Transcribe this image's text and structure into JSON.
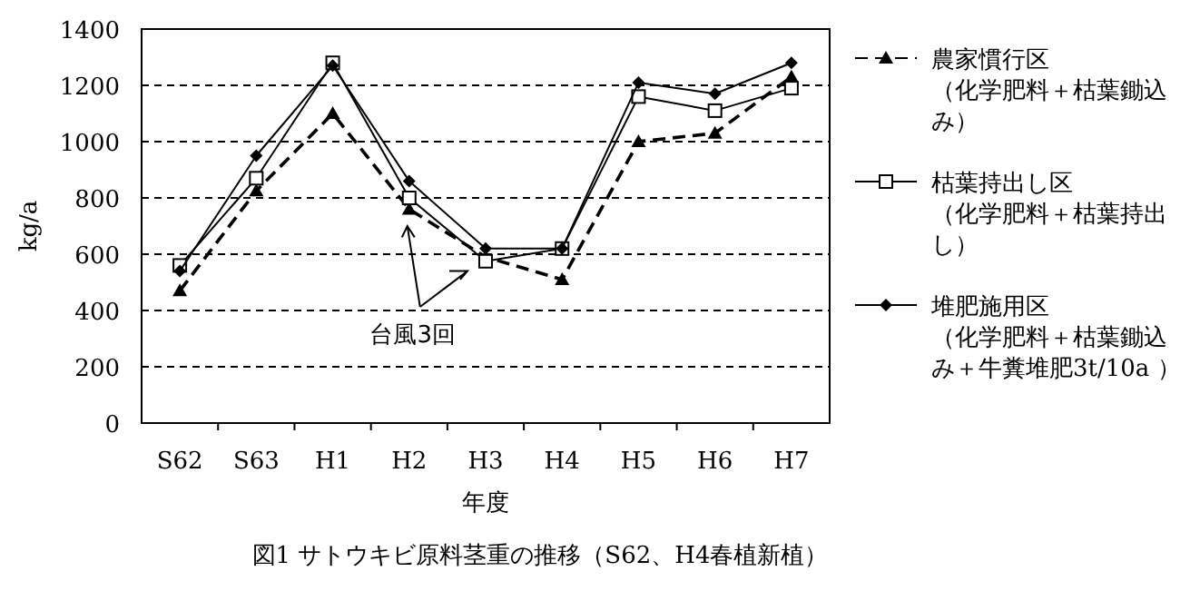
{
  "chart_data": {
    "type": "line",
    "title": "図1 サトウキビ原料茎重の推移（S62、H4春植新植）",
    "xlabel": "年度",
    "ylabel": "kg/a",
    "categories": [
      "S62",
      "S63",
      "H1",
      "H2",
      "H3",
      "H4",
      "H5",
      "H6",
      "H7"
    ],
    "ylim": [
      0,
      1400
    ],
    "yticks": [
      0,
      200,
      400,
      600,
      800,
      1000,
      1200,
      1400
    ],
    "grid": "y",
    "legend": "right",
    "annotations": [
      "台風3回"
    ],
    "series": [
      {
        "name": "農家慣行区（化学肥料＋枯葉鋤込み）",
        "color": "#000000",
        "marker": "triangle",
        "line_style": "dashed",
        "values": [
          470,
          825,
          1100,
          760,
          590,
          510,
          1000,
          1030,
          1230
        ]
      },
      {
        "name": "枯葉持出し区（化学肥料＋枯葉持出し）",
        "color": "#000000",
        "marker": "square",
        "line_style": "solid",
        "values": [
          560,
          870,
          1280,
          800,
          575,
          620,
          1160,
          1110,
          1190
        ]
      },
      {
        "name": "堆肥施用区（化学肥料＋枯葉鋤込み＋牛糞堆肥3t/10a ）",
        "color": "#000000",
        "marker": "diamond",
        "line_style": "solid",
        "values": [
          540,
          950,
          1270,
          860,
          620,
          620,
          1210,
          1170,
          1280
        ]
      }
    ]
  }
}
